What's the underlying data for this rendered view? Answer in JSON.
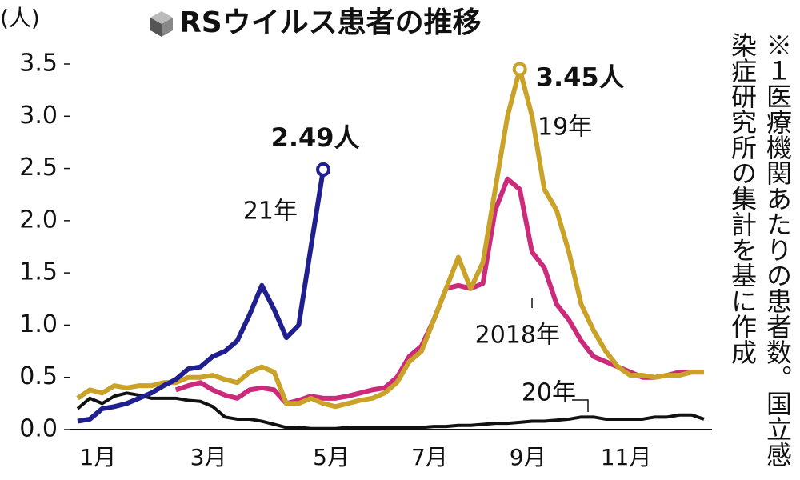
{
  "chart_data": {
    "type": "line",
    "title": "RSウイルス患者の推移",
    "y_unit": "(人)",
    "note": "※１医療機関あたりの患者数。国立感染症研究所の集計を基に作成",
    "categories": [
      null,
      "1月",
      null,
      null,
      null,
      null,
      null,
      null,
      null,
      null,
      "3月",
      null,
      null,
      null,
      null,
      null,
      null,
      null,
      null,
      null,
      "5月",
      null,
      null,
      null,
      null,
      null,
      null,
      null,
      "7月",
      null,
      null,
      null,
      null,
      null,
      null,
      null,
      "9月",
      null,
      null,
      null,
      null,
      null,
      null,
      null,
      "11月",
      null,
      null,
      null,
      null,
      null,
      null,
      null
    ],
    "ylim": [
      0,
      3.5
    ],
    "yticks": [
      {
        "value": 0,
        "label": "0.0"
      },
      0.5,
      {
        "value": 1,
        "label": "1.0"
      },
      1.5,
      {
        "value": 2,
        "label": "2.0"
      },
      2.5,
      {
        "value": 3,
        "label": "3.0"
      },
      3.5
    ],
    "series": [
      {
        "name": "20年",
        "color": "#111111",
        "values": [
          0.2,
          0.3,
          0.25,
          0.32,
          0.35,
          0.33,
          0.3,
          0.3,
          0.3,
          0.28,
          0.27,
          0.22,
          0.12,
          0.1,
          0.1,
          0.08,
          0.05,
          0.02,
          0.02,
          0.01,
          0.01,
          0.01,
          0.02,
          0.02,
          0.02,
          0.02,
          0.02,
          0.02,
          0.02,
          0.03,
          0.03,
          0.04,
          0.04,
          0.05,
          0.06,
          0.06,
          0.07,
          0.08,
          0.08,
          0.09,
          0.1,
          0.12,
          0.12,
          0.1,
          0.1,
          0.1,
          0.1,
          0.12,
          0.12,
          0.14,
          0.14,
          0.1
        ]
      },
      {
        "name": "2018年",
        "color": "#cc2a7a",
        "values": [
          null,
          null,
          null,
          null,
          null,
          null,
          null,
          null,
          0.38,
          0.42,
          0.45,
          0.38,
          0.33,
          0.3,
          0.38,
          0.4,
          0.38,
          0.25,
          0.28,
          0.32,
          0.3,
          0.3,
          0.32,
          0.35,
          0.38,
          0.4,
          0.5,
          0.7,
          0.8,
          1.05,
          1.35,
          1.38,
          1.35,
          1.4,
          2.1,
          2.4,
          2.3,
          1.7,
          1.55,
          1.2,
          1.05,
          0.85,
          0.7,
          0.65,
          0.6,
          0.55,
          0.5,
          0.5,
          0.52,
          0.55,
          0.55,
          0.55
        ]
      },
      {
        "name": "19年",
        "color": "#c9a227",
        "values": [
          0.3,
          0.38,
          0.35,
          0.42,
          0.4,
          0.42,
          0.42,
          0.45,
          0.45,
          0.5,
          0.5,
          0.52,
          0.48,
          0.45,
          0.55,
          0.6,
          0.55,
          0.25,
          0.25,
          0.3,
          0.25,
          0.22,
          0.25,
          0.28,
          0.3,
          0.35,
          0.45,
          0.65,
          0.75,
          1.05,
          1.35,
          1.65,
          1.35,
          1.6,
          2.3,
          3.0,
          3.45,
          3.0,
          2.3,
          2.1,
          1.7,
          1.2,
          0.95,
          0.75,
          0.6,
          0.52,
          0.52,
          0.5,
          0.52,
          0.52,
          0.55,
          0.55
        ],
        "value_labels": [
          null,
          null,
          null,
          null,
          null,
          null,
          null,
          null,
          null,
          null,
          null,
          null,
          null,
          null,
          null,
          null,
          null,
          null,
          null,
          null,
          null,
          null,
          null,
          null,
          null,
          null,
          null,
          null,
          null,
          null,
          null,
          null,
          null,
          null,
          null,
          null,
          "3.45人",
          null,
          null,
          null,
          null,
          null,
          null,
          null,
          null,
          null,
          null,
          null,
          null,
          null,
          null,
          null
        ]
      },
      {
        "name": "21年",
        "color": "#1f1f8f",
        "values": [
          0.08,
          0.1,
          0.2,
          0.22,
          0.25,
          0.3,
          0.35,
          0.42,
          0.48,
          0.58,
          0.6,
          0.7,
          0.75,
          0.85,
          1.1,
          1.38,
          1.15,
          0.88,
          1.0,
          1.75,
          2.49,
          null,
          null,
          null,
          null,
          null,
          null,
          null,
          null,
          null,
          null,
          null,
          null,
          null,
          null,
          null,
          null,
          null,
          null,
          null,
          null,
          null,
          null,
          null,
          null,
          null,
          null,
          null,
          null,
          null,
          null,
          null
        ],
        "value_labels": [
          null,
          null,
          null,
          null,
          null,
          null,
          null,
          null,
          null,
          null,
          null,
          null,
          null,
          null,
          null,
          null,
          null,
          null,
          null,
          null,
          "2.49人",
          null,
          null,
          null,
          null,
          null,
          null,
          null,
          null,
          null,
          null,
          null,
          null,
          null,
          null,
          null,
          null,
          null,
          null,
          null,
          null,
          null,
          null,
          null,
          null,
          null,
          null,
          null,
          null,
          null,
          null,
          null
        ]
      }
    ]
  }
}
